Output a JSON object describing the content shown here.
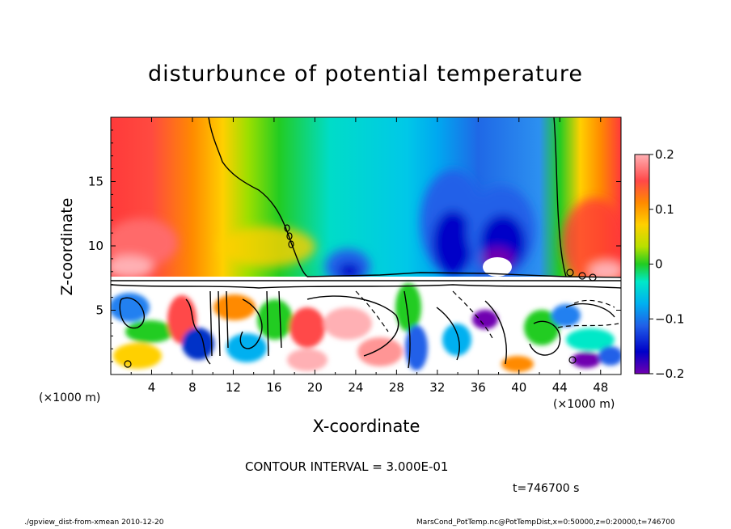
{
  "chart_data": {
    "type": "heatmap",
    "title": "disturbunce of potential temperature",
    "xlabel": "X-coordinate",
    "ylabel": "Z-coordinate",
    "x_unit_left": "(×1000 m)",
    "x_unit_right": "(×1000 m)",
    "xlim": [
      0,
      50
    ],
    "ylim": [
      0,
      20
    ],
    "x_ticks": [
      4,
      8,
      12,
      16,
      20,
      24,
      28,
      32,
      36,
      40,
      44,
      48
    ],
    "y_ticks": [
      5,
      10,
      15
    ],
    "colorbar": {
      "range": [
        -0.2,
        0.2
      ],
      "ticks": [
        "0.2",
        "0.1",
        "0",
        "−0.1",
        "−0.2"
      ],
      "tick_values": [
        0.2,
        0.1,
        0,
        -0.1,
        -0.2
      ],
      "colors": [
        "#ffb0b4",
        "#ff4848",
        "#ff8a00",
        "#ffd000",
        "#b8e000",
        "#22cc22",
        "#00e8c8",
        "#00b0f0",
        "#2060e8",
        "#0000c8",
        "#7000b0"
      ]
    },
    "features": [
      {
        "label": "positive disturbance, upper-left",
        "x_range": [
          0,
          18
        ],
        "z_range": [
          8,
          20
        ],
        "value": 0.15
      },
      {
        "label": "negative cell",
        "x_center": 23,
        "z_center": 9,
        "value": -0.15
      },
      {
        "label": "negative cell",
        "x_center": 33,
        "z_center": 11,
        "value": -0.17
      },
      {
        "label": "negative cell",
        "x_center": 38,
        "z_center": 11,
        "value": -0.18
      },
      {
        "label": "positive disturbance, right edge",
        "x_range": [
          44,
          50
        ],
        "z_range": [
          8,
          20
        ],
        "value": 0.15
      },
      {
        "label": "layer boundary",
        "z": 7.4
      }
    ]
  },
  "contour_interval": "CONTOUR INTERVAL = 3.000E-01",
  "time_label": "t=746700 s",
  "footer_left": "./gpview_dist-from-xmean   2010-12-20",
  "footer_right": "MarsCond_PotTemp.nc@PotTempDist,x=0:50000,z=0:20000,t=746700"
}
